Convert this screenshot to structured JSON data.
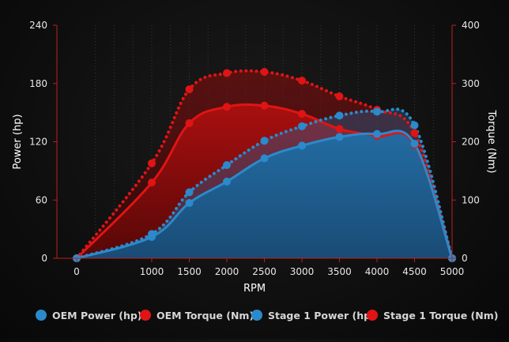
{
  "chart_data": {
    "type": "area",
    "xlabel": "RPM",
    "ylabel_left": "Power (hp)",
    "ylabel_right": "Torque (Nm)",
    "x": [
      0,
      1000,
      1500,
      2000,
      2500,
      3000,
      3500,
      4000,
      4500,
      5000
    ],
    "x_ticks": [
      "0",
      "1000",
      "1500",
      "2000",
      "2500",
      "3000",
      "3500",
      "4000",
      "4500",
      "5000"
    ],
    "y_left_ticks": [
      "0",
      "60",
      "120",
      "180",
      "240"
    ],
    "y_right_ticks": [
      "0",
      "100",
      "200",
      "300",
      "400"
    ],
    "ylim_left": [
      0,
      240
    ],
    "ylim_right": [
      0,
      400
    ],
    "grid": "vertical dotted",
    "legend_position": "bottom",
    "series": [
      {
        "name": "OEM Power (hp)",
        "axis": "left",
        "style": "solid",
        "color": "#1f77b4",
        "values": [
          0,
          22,
          57,
          79,
          103,
          116,
          125,
          128,
          118,
          0
        ]
      },
      {
        "name": "OEM Torque (Nm)",
        "axis": "right",
        "style": "solid",
        "color": "#d62728",
        "values": [
          0,
          130,
          232,
          260,
          262,
          248,
          222,
          210,
          195,
          0
        ]
      },
      {
        "name": "Stage 1 Power (hp)",
        "axis": "left",
        "style": "dotted",
        "color": "#1f77b4",
        "values": [
          0,
          25,
          68,
          96,
          121,
          136,
          147,
          151,
          137,
          0
        ]
      },
      {
        "name": "Stage 1 Torque (Nm)",
        "axis": "right",
        "style": "dotted",
        "color": "#d62728",
        "values": [
          0,
          163,
          290,
          318,
          320,
          305,
          278,
          255,
          215,
          0
        ]
      }
    ],
    "legend": [
      "OEM Power (hp)",
      "OEM Torque (Nm)",
      "Stage 1 Power (hp)",
      "Stage 1 Torque (Nm)"
    ]
  }
}
